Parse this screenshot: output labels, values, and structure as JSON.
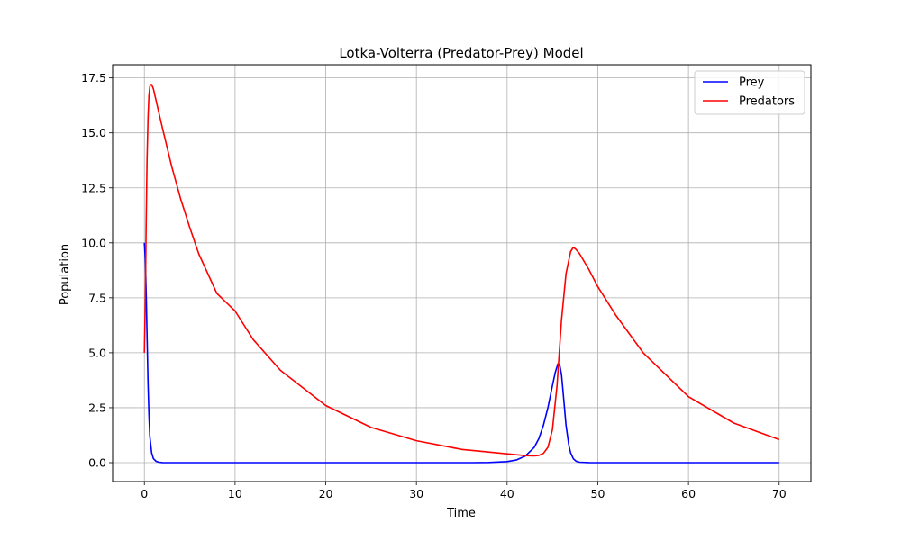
{
  "chart_data": {
    "type": "line",
    "title": "Lotka-Volterra (Predator-Prey) Model",
    "xlabel": "Time",
    "ylabel": "Population",
    "xlim": [
      -3.5,
      73.5
    ],
    "ylim": [
      -0.86,
      18.1
    ],
    "xticks": [
      0,
      10,
      20,
      30,
      40,
      50,
      60,
      70
    ],
    "yticks": [
      0.0,
      2.5,
      5.0,
      7.5,
      10.0,
      12.5,
      15.0,
      17.5
    ],
    "xtick_labels": [
      "0",
      "10",
      "20",
      "30",
      "40",
      "50",
      "60",
      "70"
    ],
    "ytick_labels": [
      "0.0",
      "2.5",
      "5.0",
      "7.5",
      "10.0",
      "12.5",
      "15.0",
      "17.5"
    ],
    "grid": true,
    "legend": "top-right",
    "series": [
      {
        "name": "Prey",
        "color": "#0000ff",
        "x": [
          0,
          0.1,
          0.2,
          0.3,
          0.4,
          0.5,
          0.6,
          0.8,
          1.0,
          1.3,
          1.6,
          2.0,
          3,
          5,
          10,
          20,
          30,
          36,
          38,
          40,
          41,
          42,
          43,
          43.5,
          44,
          44.5,
          45,
          45.3,
          45.6,
          45.8,
          46.0,
          46.2,
          46.5,
          46.8,
          47.0,
          47.3,
          47.6,
          48,
          49,
          50,
          55,
          60,
          65,
          70
        ],
        "values": [
          10.0,
          9.3,
          7.8,
          5.8,
          3.6,
          2.2,
          1.2,
          0.45,
          0.18,
          0.06,
          0.02,
          0.005,
          0.001,
          0,
          0,
          0,
          0,
          0.002,
          0.01,
          0.05,
          0.12,
          0.3,
          0.7,
          1.1,
          1.7,
          2.5,
          3.5,
          4.1,
          4.5,
          4.45,
          4.0,
          3.1,
          1.7,
          0.8,
          0.45,
          0.18,
          0.07,
          0.02,
          0.003,
          0,
          0,
          0,
          0,
          0
        ]
      },
      {
        "name": "Predators",
        "color": "#ff0000",
        "x": [
          0,
          0.1,
          0.2,
          0.3,
          0.4,
          0.5,
          0.6,
          0.7,
          0.8,
          0.9,
          1.0,
          1.5,
          2,
          3,
          4,
          5,
          6,
          8,
          10,
          12,
          15,
          20,
          25,
          30,
          35,
          40,
          42,
          43,
          43.5,
          44,
          44.5,
          45,
          45.5,
          46,
          46.5,
          47,
          47.3,
          47.6,
          48,
          49,
          50,
          52,
          55,
          60,
          65,
          70
        ],
        "values": [
          5.0,
          7.2,
          10.8,
          13.8,
          15.7,
          16.7,
          17.1,
          17.2,
          17.2,
          17.1,
          17.0,
          16.1,
          15.2,
          13.5,
          12.0,
          10.7,
          9.5,
          7.7,
          6.9,
          5.6,
          4.2,
          2.6,
          1.6,
          1.0,
          0.6,
          0.4,
          0.32,
          0.31,
          0.33,
          0.42,
          0.7,
          1.5,
          3.5,
          6.5,
          8.6,
          9.6,
          9.8,
          9.7,
          9.5,
          8.8,
          8.0,
          6.7,
          5.0,
          3.0,
          1.8,
          1.05
        ]
      }
    ]
  }
}
